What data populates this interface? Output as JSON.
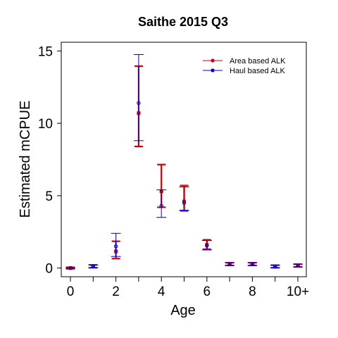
{
  "chart_data": {
    "type": "scatter",
    "title": "Saithe 2015 Q3",
    "xlabel": "Age",
    "ylabel": "Estimated mCPUE",
    "categories": [
      "0",
      "1",
      "2",
      "3",
      "4",
      "5",
      "6",
      "7",
      "8",
      "9",
      "10+"
    ],
    "x_tick_labels": [
      "0",
      "2",
      "4",
      "6",
      "8",
      "10+"
    ],
    "y_ticks": [
      0,
      5,
      10,
      15
    ],
    "ylim": [
      -0.6,
      15.6
    ],
    "grid": false,
    "legend_position": "top-right",
    "series": [
      {
        "name": "Area based ALK",
        "color": "#cc0000",
        "values": [
          0.0,
          0.12,
          1.15,
          10.7,
          5.3,
          4.6,
          1.6,
          0.27,
          0.27,
          0.1,
          0.17
        ],
        "lower": [
          -0.05,
          0.02,
          0.65,
          8.4,
          4.2,
          3.95,
          1.3,
          0.18,
          0.18,
          0.02,
          0.08
        ],
        "upper": [
          0.05,
          0.22,
          1.85,
          13.95,
          7.15,
          5.7,
          1.95,
          0.37,
          0.37,
          0.2,
          0.27
        ]
      },
      {
        "name": "Haul based ALK",
        "color": "#0000cc",
        "values": [
          0.0,
          0.12,
          1.5,
          11.4,
          4.3,
          4.5,
          1.55,
          0.27,
          0.27,
          0.1,
          0.17
        ],
        "lower": [
          -0.05,
          0.02,
          0.8,
          8.8,
          3.5,
          4.0,
          1.25,
          0.18,
          0.18,
          0.02,
          0.08
        ],
        "upper": [
          0.05,
          0.22,
          2.4,
          14.75,
          5.4,
          5.6,
          1.9,
          0.37,
          0.37,
          0.2,
          0.27
        ]
      }
    ]
  }
}
